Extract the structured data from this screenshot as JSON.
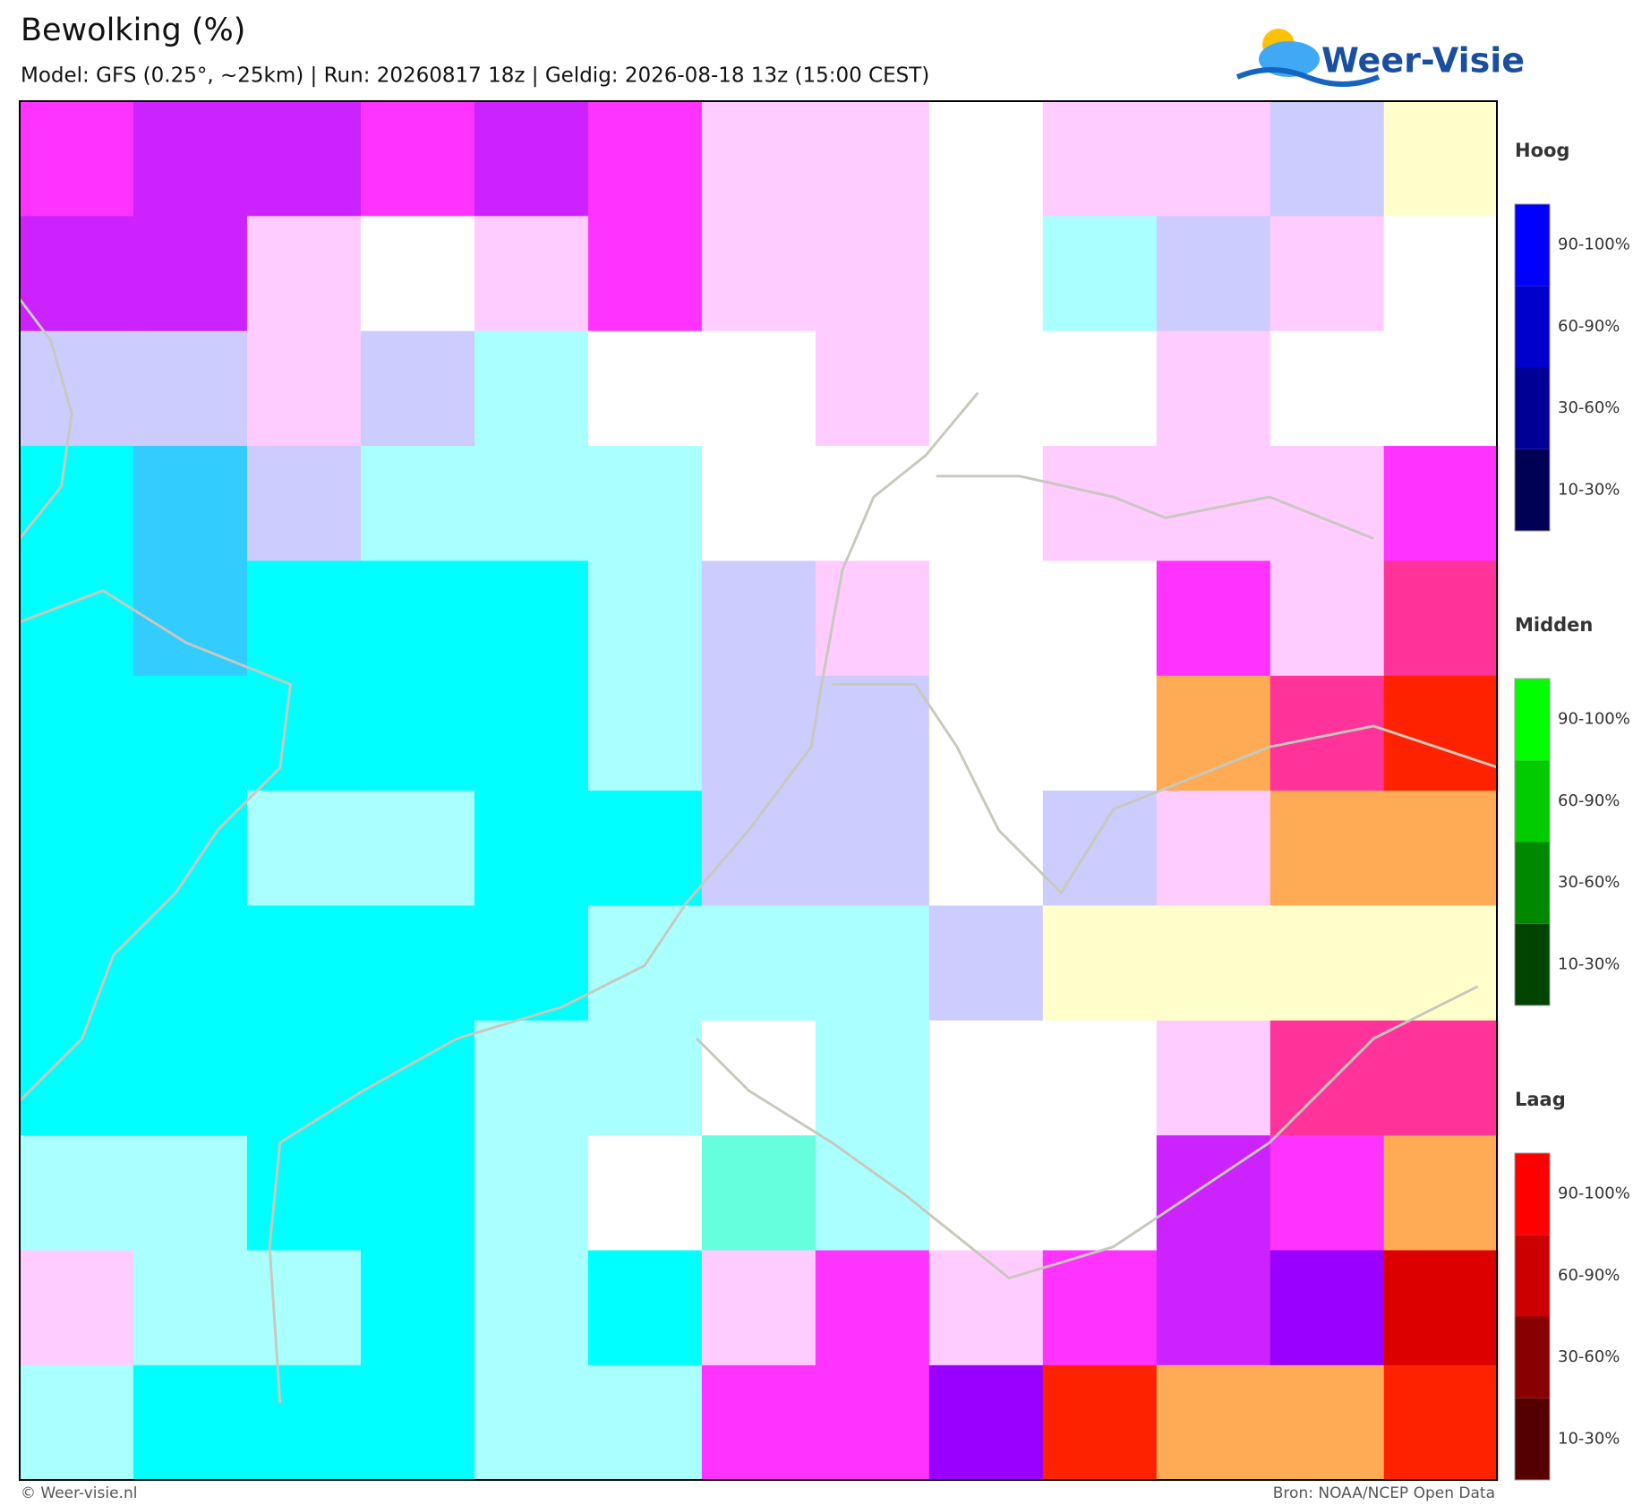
{
  "header": {
    "title": "Bewolking (%)",
    "subtitle": "Model: GFS (0.25°, ~25km)  |  Run: 20260817 18z  |  Geldig: 2026-08-18 13z (15:00 CEST)"
  },
  "logo": {
    "text": "Weer-Visie"
  },
  "legend": {
    "groups": [
      {
        "title": "Hoog",
        "levels": [
          "90-100%",
          "60-90%",
          "30-60%",
          "10-30%"
        ]
      },
      {
        "title": "Midden",
        "levels": [
          "90-100%",
          "60-90%",
          "30-60%",
          "10-30%"
        ]
      },
      {
        "title": "Laag",
        "levels": [
          "90-100%",
          "60-90%",
          "30-60%",
          "10-30%"
        ]
      }
    ]
  },
  "footer": {
    "left": "© Weer-visie.nl",
    "right": "Bron: NOAA/NCEP Open Data"
  }
}
